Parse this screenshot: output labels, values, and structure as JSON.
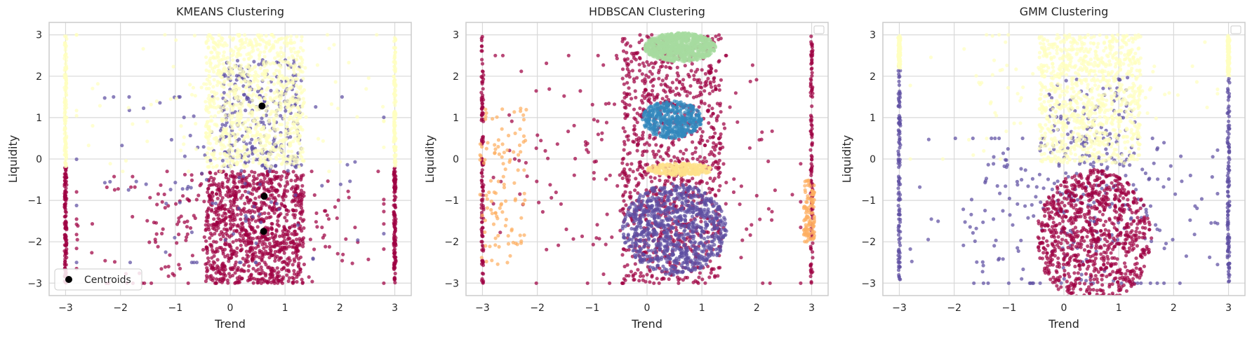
{
  "figure": {
    "background": "#ffffff",
    "plot_background": "#ffffff",
    "grid_color": "#d9d9d9",
    "spine_color": "#cccccc"
  },
  "chart_data": [
    {
      "type": "scatter",
      "title": "KMEANS Clustering",
      "xlabel": "Trend",
      "ylabel": "Liquidity",
      "xlim": [
        -3.3,
        3.3
      ],
      "ylim": [
        -3.3,
        3.3
      ],
      "xticks": [
        -3,
        -2,
        -1,
        0,
        1,
        2,
        3
      ],
      "yticks": [
        -3,
        -2,
        -1,
        0,
        1,
        2,
        3
      ],
      "grid": true,
      "legend": {
        "position": "lower-left",
        "entries": [
          "Centroids"
        ]
      },
      "clusters": [
        {
          "color": "#9e0142",
          "regions": [
            {
              "kind": "box",
              "x": [
                -0.45,
                1.35
              ],
              "y": [
                -3.0,
                -0.3
              ],
              "density": "very-high"
            },
            {
              "kind": "halo",
              "x": [
                -2.8,
                2.8
              ],
              "y": [
                -3.0,
                -0.3
              ],
              "density": "medium"
            },
            {
              "kind": "edge",
              "x": -3.0,
              "y": [
                -3.0,
                -0.2
              ]
            },
            {
              "kind": "edge",
              "x": 3.0,
              "y": [
                -3.0,
                -0.2
              ]
            }
          ]
        },
        {
          "color": "#5e4fa2",
          "regions": [
            {
              "kind": "box",
              "x": [
                -0.2,
                1.3
              ],
              "y": [
                -0.3,
                2.4
              ],
              "density": "medium"
            },
            {
              "kind": "halo",
              "x": [
                -2.8,
                2.8
              ],
              "y": [
                -2.5,
                1.5
              ],
              "density": "low"
            }
          ]
        },
        {
          "color": "#ffffbf",
          "regions": [
            {
              "kind": "box",
              "x": [
                -0.45,
                1.35
              ],
              "y": [
                -0.2,
                3.0
              ],
              "density": "very-high"
            },
            {
              "kind": "halo",
              "x": [
                -2.8,
                2.8
              ],
              "y": [
                -0.3,
                3.0
              ],
              "density": "low"
            },
            {
              "kind": "edge",
              "x": -3.0,
              "y": [
                -0.2,
                3.0
              ]
            },
            {
              "kind": "edge",
              "x": 3.0,
              "y": [
                -0.2,
                3.0
              ]
            }
          ]
        }
      ],
      "centroids": {
        "color": "#000000",
        "points": [
          [
            0.58,
            1.28
          ],
          [
            0.62,
            -0.9
          ],
          [
            0.61,
            -1.75
          ]
        ]
      }
    },
    {
      "type": "scatter",
      "title": "HDBSCAN Clustering",
      "xlabel": "Trend",
      "ylabel": "Liquidity",
      "xlim": [
        -3.3,
        3.3
      ],
      "ylim": [
        -3.3,
        3.3
      ],
      "xticks": [
        -3,
        -2,
        -1,
        0,
        1,
        2,
        3
      ],
      "yticks": [
        -3,
        -2,
        -1,
        0,
        1,
        2,
        3
      ],
      "grid": true,
      "legend": {
        "position": "upper-right",
        "entries": []
      },
      "clusters": [
        {
          "color": "#9e0142",
          "regions": [
            {
              "kind": "box",
              "x": [
                -0.45,
                1.35
              ],
              "y": [
                -3.0,
                3.0
              ],
              "density": "very-high"
            },
            {
              "kind": "halo",
              "x": [
                -2.8,
                2.8
              ],
              "y": [
                -3.0,
                2.5
              ],
              "density": "medium"
            },
            {
              "kind": "edge",
              "x": -3.0,
              "y": [
                -3.0,
                3.0
              ]
            },
            {
              "kind": "edge",
              "x": 3.0,
              "y": [
                -3.0,
                3.0
              ]
            }
          ]
        },
        {
          "color": "#a6dba0",
          "regions": [
            {
              "kind": "ellipse",
              "cx": 0.6,
              "cy": 2.7,
              "rx": 0.65,
              "ry": 0.35,
              "density": "very-high"
            }
          ]
        },
        {
          "color": "#3288bd",
          "regions": [
            {
              "kind": "ellipse",
              "cx": 0.45,
              "cy": 0.95,
              "rx": 0.55,
              "ry": 0.45,
              "density": "high"
            }
          ]
        },
        {
          "color": "#fee08b",
          "regions": [
            {
              "kind": "ellipse",
              "cx": 0.6,
              "cy": -0.25,
              "rx": 0.6,
              "ry": 0.15,
              "density": "medium"
            }
          ]
        },
        {
          "color": "#5e4fa2",
          "regions": [
            {
              "kind": "ellipse",
              "cx": 0.5,
              "cy": -1.7,
              "rx": 0.95,
              "ry": 1.1,
              "density": "very-high"
            }
          ]
        },
        {
          "color": "#fdae61",
          "regions": [
            {
              "kind": "box",
              "x": [
                -3.05,
                -2.2
              ],
              "y": [
                -2.6,
                1.3
              ],
              "density": "low"
            },
            {
              "kind": "box",
              "x": [
                2.85,
                3.05
              ],
              "y": [
                -2.0,
                -0.5
              ],
              "density": "low"
            }
          ]
        }
      ]
    },
    {
      "type": "scatter",
      "title": "GMM Clustering",
      "xlabel": "Trend",
      "ylabel": "Liquidity",
      "xlim": [
        -3.3,
        3.3
      ],
      "ylim": [
        -3.3,
        3.3
      ],
      "xticks": [
        -3,
        -2,
        -1,
        0,
        1,
        2,
        3
      ],
      "yticks": [
        -3,
        -2,
        -1,
        0,
        1,
        2,
        3
      ],
      "grid": true,
      "legend": {
        "position": "upper-right",
        "entries": []
      },
      "clusters": [
        {
          "color": "#5e4fa2",
          "regions": [
            {
              "kind": "halo",
              "x": [
                -2.8,
                2.8
              ],
              "y": [
                -3.0,
                0.5
              ],
              "density": "medium"
            },
            {
              "kind": "edge",
              "x": -3.0,
              "y": [
                -3.0,
                2.3
              ]
            },
            {
              "kind": "edge",
              "x": 3.0,
              "y": [
                -3.0,
                2.0
              ]
            },
            {
              "kind": "box",
              "x": [
                -0.3,
                1.3
              ],
              "y": [
                -0.2,
                2.0
              ],
              "density": "low"
            }
          ]
        },
        {
          "color": "#ffffbf",
          "regions": [
            {
              "kind": "box",
              "x": [
                -0.45,
                1.4
              ],
              "y": [
                -0.1,
                3.0
              ],
              "density": "very-high"
            },
            {
              "kind": "halo",
              "x": [
                -2.8,
                2.8
              ],
              "y": [
                0.0,
                3.0
              ],
              "density": "low"
            },
            {
              "kind": "edge",
              "x": -3.0,
              "y": [
                2.2,
                3.0
              ]
            },
            {
              "kind": "edge",
              "x": 3.0,
              "y": [
                2.0,
                3.0
              ]
            }
          ]
        },
        {
          "color": "#9e0142",
          "regions": [
            {
              "kind": "ellipse",
              "cx": 0.55,
              "cy": -1.9,
              "rx": 1.05,
              "ry": 1.65,
              "density": "very-high"
            }
          ]
        }
      ]
    }
  ]
}
